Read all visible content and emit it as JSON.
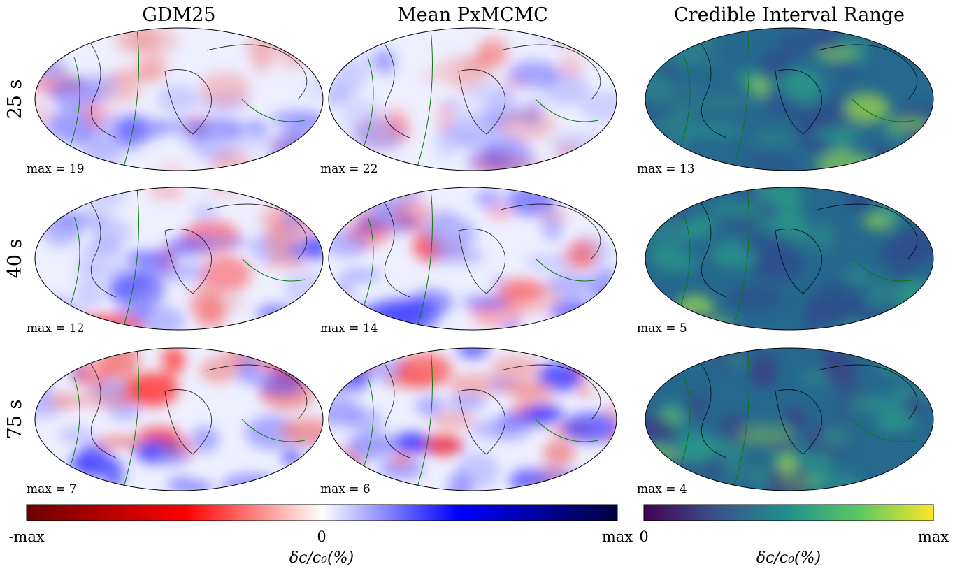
{
  "columns": [
    "GDM25",
    "Mean PxMCMC",
    "Credible Interval Range"
  ],
  "rows": [
    "25 s",
    "40 s",
    "75 s"
  ],
  "panels": [
    [
      "max = 19",
      "max = 22",
      "max = 13"
    ],
    [
      "max = 12",
      "max = 14",
      "max = 5"
    ],
    [
      "max = 7",
      "max = 6",
      "max = 4"
    ]
  ],
  "colorbars": [
    {
      "ticks": [
        "-max",
        "0",
        "max"
      ],
      "label": "δc/c₀(%)"
    },
    {
      "ticks": [
        "0",
        "max"
      ],
      "label": "δc/c₀(%)"
    }
  ]
}
